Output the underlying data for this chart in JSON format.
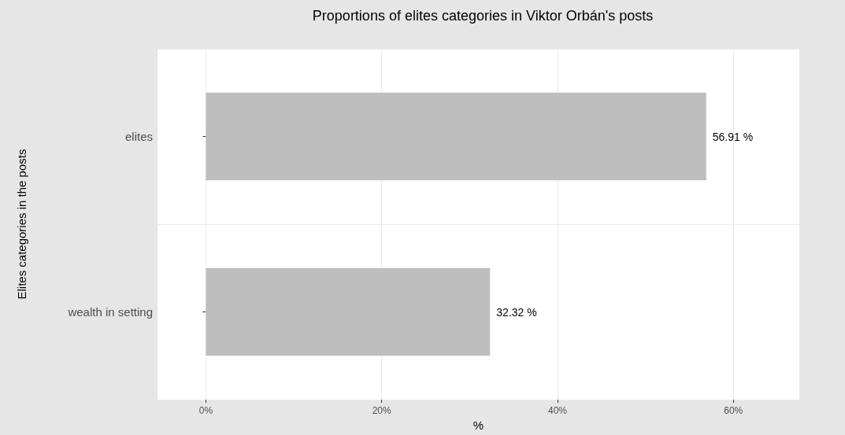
{
  "chart_data": {
    "type": "bar",
    "orientation": "horizontal",
    "title": "Proportions of elites categories in Viktor Orbán's posts",
    "xlabel": "%",
    "ylabel": "Elites categories in the posts",
    "categories": [
      "elites",
      "wealth in setting"
    ],
    "values": [
      56.91,
      32.32
    ],
    "value_labels": [
      "56.91 %",
      "32.32 %"
    ],
    "color": "#bebebe",
    "xlim": [
      -5.5,
      67.5
    ],
    "xticks": [
      {
        "value": 0,
        "label": "0%"
      },
      {
        "value": 20,
        "label": "20%"
      },
      {
        "value": 40,
        "label": "40%"
      },
      {
        "value": 60,
        "label": "60%"
      }
    ],
    "grid": true
  }
}
